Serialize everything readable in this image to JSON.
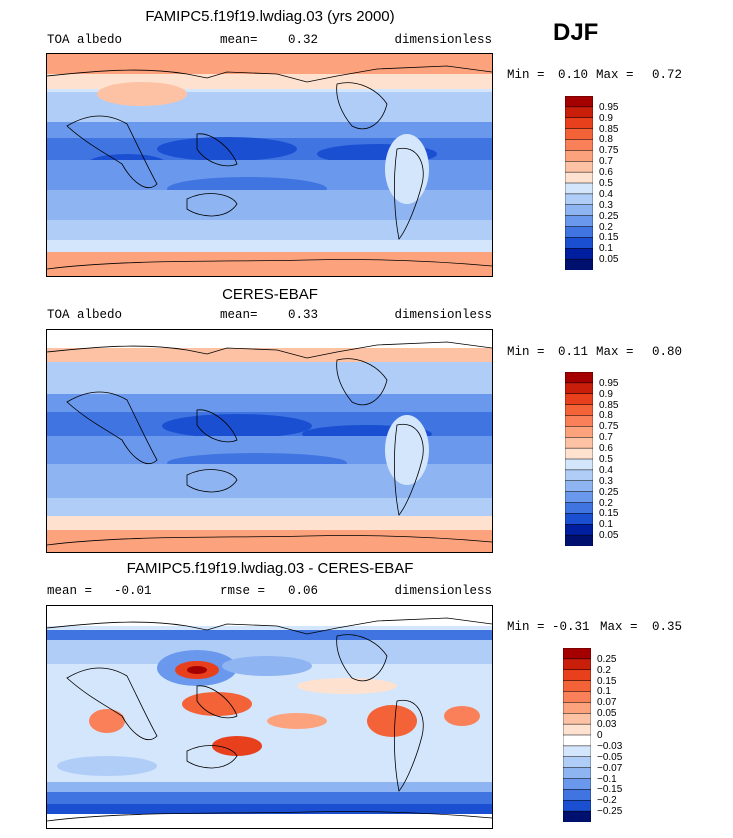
{
  "season": "DJF",
  "panels": [
    {
      "title": "FAMIPC5.f19f19.lwdiag.03 (yrs 2000)",
      "left": "TOA albedo",
      "stat_label": "mean=",
      "stat_value": "0.32",
      "extra_label": "",
      "extra_value": "",
      "units": "dimensionless",
      "min_label": "Min =",
      "min_value": "0.10",
      "max_label": "Max =",
      "max_value": "0.72"
    },
    {
      "title": "CERES-EBAF",
      "left": "TOA albedo",
      "stat_label": "mean=",
      "stat_value": "0.33",
      "extra_label": "",
      "extra_value": "",
      "units": "dimensionless",
      "min_label": "Min =",
      "min_value": "0.11",
      "max_label": "Max =",
      "max_value": "0.80"
    },
    {
      "title": "FAMIPC5.f19f19.lwdiag.03 - CERES-EBAF",
      "left": "mean =",
      "stat_label": "",
      "stat_value": "-0.01",
      "extra_label": "rmse =",
      "extra_value": "0.06",
      "units": "dimensionless",
      "min_label": "Min =",
      "min_value": "-0.31",
      "max_label": "Max =",
      "max_value": "0.35"
    }
  ],
  "chart_data": [
    {
      "type": "heatmap",
      "title": "FAMIPC5.f19f19.lwdiag.03 (yrs 2000)",
      "variable": "TOA albedo",
      "mean": 0.32,
      "min": 0.1,
      "max": 0.72,
      "legend_levels": [
        "0.95",
        "0.9",
        "0.85",
        "0.8",
        "0.75",
        "0.7",
        "0.6",
        "0.5",
        "0.4",
        "0.3",
        "0.25",
        "0.2",
        "0.15",
        "0.1",
        "0.05"
      ],
      "legend_colors": [
        "#a50000",
        "#c81e0a",
        "#e8401c",
        "#f46237",
        "#f98058",
        "#fca37d",
        "#fdc2a4",
        "#fee1cf",
        "#d4e6fb",
        "#b0cdf8",
        "#8eb4f2",
        "#6998ec",
        "#3f74e1",
        "#1a4fd2",
        "#001fa0",
        "#00106e"
      ]
    },
    {
      "type": "heatmap",
      "title": "CERES-EBAF",
      "variable": "TOA albedo",
      "mean": 0.33,
      "min": 0.11,
      "max": 0.8,
      "legend_levels": [
        "0.95",
        "0.9",
        "0.85",
        "0.8",
        "0.75",
        "0.7",
        "0.6",
        "0.5",
        "0.4",
        "0.3",
        "0.25",
        "0.2",
        "0.15",
        "0.1",
        "0.05"
      ],
      "legend_colors": [
        "#a50000",
        "#c81e0a",
        "#e8401c",
        "#f46237",
        "#f98058",
        "#fca37d",
        "#fdc2a4",
        "#fee1cf",
        "#d4e6fb",
        "#b0cdf8",
        "#8eb4f2",
        "#6998ec",
        "#3f74e1",
        "#1a4fd2",
        "#001fa0",
        "#00106e"
      ]
    },
    {
      "type": "heatmap",
      "title": "FAMIPC5.f19f19.lwdiag.03 - CERES-EBAF",
      "variable": "difference",
      "mean": -0.01,
      "rmse": 0.06,
      "min": -0.31,
      "max": 0.35,
      "legend_levels": [
        "0.25",
        "0.2",
        "0.15",
        "0.1",
        "0.07",
        "0.05",
        "0.03",
        "0",
        "−0.03",
        "−0.05",
        "−0.07",
        "−0.1",
        "−0.15",
        "−0.2",
        "−0.25"
      ],
      "legend_colors": [
        "#a50000",
        "#c81e0a",
        "#e8401c",
        "#f46237",
        "#f98058",
        "#fca37d",
        "#fdc2a4",
        "#fee1cf",
        "#ffffff",
        "#d4e6fb",
        "#b0cdf8",
        "#8eb4f2",
        "#6998ec",
        "#3f74e1",
        "#1a4fd2",
        "#00106e"
      ]
    }
  ]
}
